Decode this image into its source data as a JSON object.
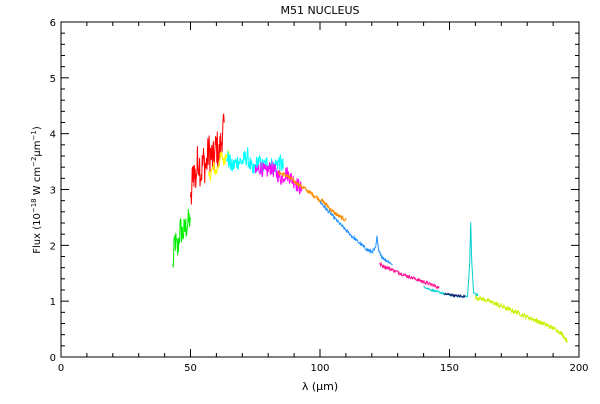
{
  "chart_data": {
    "type": "line",
    "title": "M51 NUCLEUS",
    "xlabel": "λ (μm)",
    "ylabel_parts": {
      "a": "Flux (10",
      "b": "−18",
      "c": " W cm",
      "d": "−2",
      "e": "μm",
      "f": "−1",
      "g": ")"
    },
    "xlim": [
      0,
      200
    ],
    "ylim": [
      0,
      6
    ],
    "x_ticks": [
      0,
      50,
      100,
      150,
      200
    ],
    "x_tick_labels": [
      "0",
      "50",
      "100",
      "150",
      "200"
    ],
    "x_minor_step": 10,
    "y_ticks": [
      0,
      1,
      2,
      3,
      4,
      5,
      6
    ],
    "y_tick_labels": [
      "0",
      "1",
      "2",
      "3",
      "4",
      "5",
      "6"
    ],
    "y_minor_step": 0.2,
    "grid": false,
    "legend": "none",
    "series": [
      {
        "color": "#00ee00",
        "x": [
          43.2,
          44,
          45,
          46,
          47,
          48,
          49,
          50
        ],
        "y": [
          1.6,
          2.1,
          1.9,
          2.3,
          2.2,
          2.3,
          2.4,
          2.5
        ],
        "noise": 0.25
      },
      {
        "color": "#ff0000",
        "x": [
          50,
          51,
          52,
          53,
          54,
          55,
          56,
          57,
          58,
          59,
          60,
          61,
          62,
          63
        ],
        "y": [
          2.6,
          3.4,
          3.2,
          3.6,
          3.3,
          3.5,
          3.4,
          3.7,
          3.6,
          3.5,
          3.8,
          3.6,
          3.9,
          4.2
        ],
        "noise": 0.35
      },
      {
        "color": "#ffff00",
        "x": [
          57,
          58,
          59,
          60,
          61,
          62,
          63,
          64,
          65
        ],
        "y": [
          3.2,
          3.3,
          3.4,
          3.3,
          3.5,
          3.6,
          3.5,
          3.7,
          3.6
        ],
        "noise": 0.12
      },
      {
        "color": "#00ffff",
        "x": [
          64,
          66,
          68,
          70,
          72,
          74,
          76,
          78,
          80,
          82,
          84,
          86
        ],
        "y": [
          3.6,
          3.4,
          3.5,
          3.5,
          3.6,
          3.3,
          3.5,
          3.4,
          3.5,
          3.4,
          3.5,
          3.4
        ],
        "noise": 0.16
      },
      {
        "color": "#ff00ff",
        "x": [
          75,
          77,
          79,
          81,
          83,
          85,
          87,
          89,
          91,
          93
        ],
        "y": [
          3.3,
          3.4,
          3.3,
          3.4,
          3.3,
          3.2,
          3.3,
          3.2,
          3.1,
          3.0
        ],
        "noise": 0.14
      },
      {
        "color": "#ff8c00",
        "x": [
          84,
          87,
          90,
          93,
          96,
          99,
          102,
          105,
          108,
          110
        ],
        "y": [
          3.3,
          3.25,
          3.15,
          3.05,
          2.95,
          2.85,
          2.75,
          2.6,
          2.5,
          2.45
        ],
        "noise": 0.04
      },
      {
        "color": "#1e90ff",
        "x": [
          100,
          103,
          106,
          109,
          112,
          115,
          118,
          120,
          121.5,
          122,
          122.5,
          124,
          126,
          128
        ],
        "y": [
          2.78,
          2.62,
          2.47,
          2.32,
          2.18,
          2.05,
          1.93,
          1.88,
          1.95,
          2.15,
          1.95,
          1.78,
          1.72,
          1.66
        ],
        "noise": 0.03
      },
      {
        "color": "#ff1493",
        "x": [
          123,
          126,
          129,
          132,
          135,
          138,
          141,
          144,
          146
        ],
        "y": [
          1.66,
          1.6,
          1.54,
          1.48,
          1.43,
          1.38,
          1.33,
          1.28,
          1.24
        ],
        "noise": 0.03
      },
      {
        "color": "#00ced1",
        "x": [
          140,
          143,
          146,
          149,
          152,
          155,
          157,
          157.8,
          158.2,
          158.6,
          159.3,
          161
        ],
        "y": [
          1.26,
          1.2,
          1.16,
          1.12,
          1.1,
          1.08,
          1.09,
          1.7,
          2.4,
          1.7,
          1.15,
          1.1
        ],
        "noise": 0.015
      },
      {
        "color": "#191970",
        "x": [
          148,
          150,
          152,
          154,
          156
        ],
        "y": [
          1.13,
          1.12,
          1.1,
          1.09,
          1.08
        ],
        "noise": 0.02
      },
      {
        "color": "#ccee00",
        "x": [
          160,
          164,
          168,
          172,
          176,
          180,
          184,
          188,
          192,
          194,
          195.5
        ],
        "y": [
          1.07,
          1.02,
          0.95,
          0.87,
          0.8,
          0.72,
          0.64,
          0.56,
          0.47,
          0.38,
          0.28
        ],
        "noise": 0.04
      }
    ]
  }
}
